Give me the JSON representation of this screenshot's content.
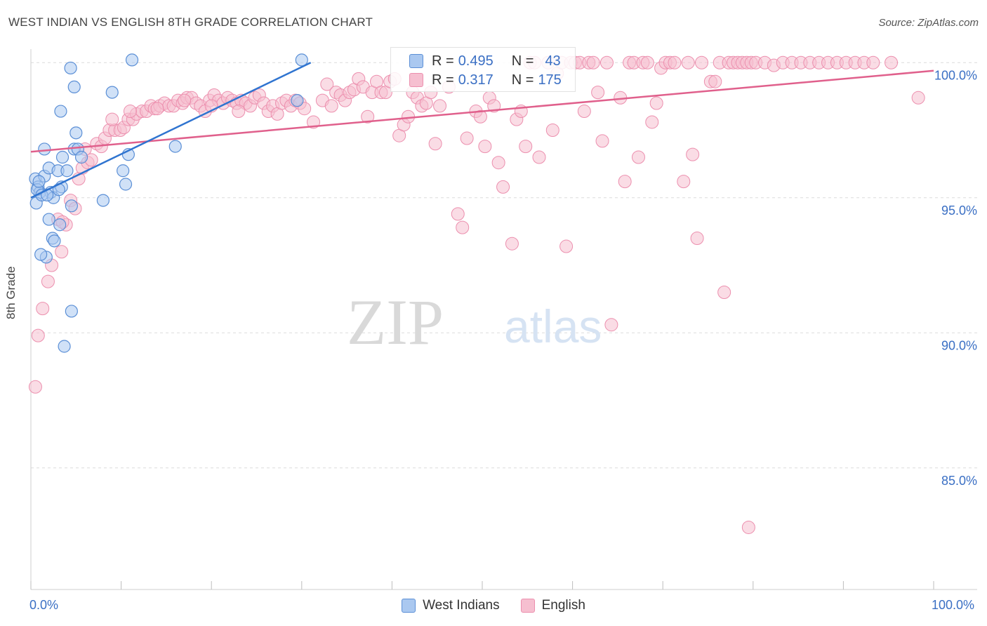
{
  "title": "WEST INDIAN VS ENGLISH 8TH GRADE CORRELATION CHART",
  "source": "Source: ZipAtlas.com",
  "watermark": {
    "zip": "ZIP",
    "atlas": "atlas"
  },
  "legend": {
    "rows": [
      {
        "r_key": "R =",
        "r_val": "0.495",
        "n_key": "N =",
        "n_val": "43"
      },
      {
        "r_key": "R =",
        "r_val": "0.317",
        "n_key": "N =",
        "n_val": "175"
      }
    ]
  },
  "colors": {
    "blue_fill": "#aac8f0",
    "blue_stroke": "#5b8fd6",
    "blue_line": "#2f74d0",
    "pink_fill": "#f6bfd0",
    "pink_stroke": "#ec8fae",
    "pink_line": "#e0608c",
    "axis_label": "#3a6fc4",
    "grid": "#dcdcdc"
  },
  "chart_data": {
    "type": "scatter",
    "title": "WEST INDIAN VS ENGLISH 8TH GRADE CORRELATION CHART",
    "xlabel": "",
    "ylabel": "8th Grade",
    "xlim": [
      0,
      100
    ],
    "ylim": [
      80.5,
      100.5
    ],
    "x_tick_labels": [
      "0.0%",
      "100.0%"
    ],
    "y_ticks": [
      85,
      90,
      95,
      100
    ],
    "y_tick_labels": [
      "85.0%",
      "90.0%",
      "95.0%",
      "100.0%"
    ],
    "grid": true,
    "legend_position": "bottom-center",
    "series": [
      {
        "name": "West Indians",
        "R": 0.495,
        "N": 43,
        "trend": [
          [
            0,
            95.0
          ],
          [
            31,
            100.0
          ]
        ],
        "points": [
          [
            0.5,
            95.7
          ],
          [
            0.8,
            95.4
          ],
          [
            1.0,
            95.2
          ],
          [
            0.6,
            94.8
          ],
          [
            1.5,
            95.8
          ],
          [
            2.0,
            96.1
          ],
          [
            2.2,
            95.2
          ],
          [
            2.5,
            95.0
          ],
          [
            3.0,
            96.0
          ],
          [
            3.4,
            95.4
          ],
          [
            3.5,
            96.5
          ],
          [
            4.0,
            96.0
          ],
          [
            1.5,
            96.8
          ],
          [
            2.0,
            94.2
          ],
          [
            2.4,
            93.5
          ],
          [
            1.7,
            92.8
          ],
          [
            2.6,
            93.4
          ],
          [
            3.2,
            94.0
          ],
          [
            1.1,
            92.9
          ],
          [
            4.5,
            94.7
          ],
          [
            4.8,
            96.8
          ],
          [
            5.2,
            96.8
          ],
          [
            5.6,
            96.5
          ],
          [
            5.0,
            97.4
          ],
          [
            3.3,
            98.2
          ],
          [
            4.8,
            99.1
          ],
          [
            4.4,
            99.8
          ],
          [
            9.0,
            98.9
          ],
          [
            10.2,
            96.0
          ],
          [
            10.5,
            95.5
          ],
          [
            10.8,
            96.6
          ],
          [
            11.2,
            100.1
          ],
          [
            8.0,
            94.9
          ],
          [
            4.5,
            90.8
          ],
          [
            3.7,
            89.5
          ],
          [
            16.0,
            96.9
          ],
          [
            30.0,
            100.1
          ],
          [
            29.5,
            98.6
          ],
          [
            0.7,
            95.3
          ],
          [
            1.2,
            95.1
          ],
          [
            1.8,
            95.1
          ],
          [
            0.9,
            95.6
          ],
          [
            3.1,
            95.3
          ]
        ]
      },
      {
        "name": "English",
        "R": 0.317,
        "N": 175,
        "trend": [
          [
            0,
            96.7
          ],
          [
            100,
            99.7
          ]
        ],
        "points": [
          [
            0.5,
            88.0
          ],
          [
            0.8,
            89.9
          ],
          [
            1.3,
            90.9
          ],
          [
            1.9,
            91.9
          ],
          [
            2.3,
            92.5
          ],
          [
            3.4,
            93.0
          ],
          [
            3.9,
            94.0
          ],
          [
            3.0,
            94.2
          ],
          [
            4.4,
            94.9
          ],
          [
            4.9,
            94.6
          ],
          [
            5.3,
            95.7
          ],
          [
            5.7,
            96.1
          ],
          [
            6.3,
            96.3
          ],
          [
            6.7,
            96.4
          ],
          [
            7.3,
            97.0
          ],
          [
            7.8,
            96.9
          ],
          [
            8.2,
            97.2
          ],
          [
            8.7,
            97.5
          ],
          [
            9.3,
            97.5
          ],
          [
            9.9,
            97.5
          ],
          [
            10.3,
            97.6
          ],
          [
            10.8,
            97.9
          ],
          [
            11.3,
            97.9
          ],
          [
            11.7,
            98.1
          ],
          [
            12.3,
            98.2
          ],
          [
            12.8,
            98.2
          ],
          [
            13.3,
            98.4
          ],
          [
            13.7,
            98.3
          ],
          [
            14.3,
            98.4
          ],
          [
            14.8,
            98.5
          ],
          [
            15.3,
            98.4
          ],
          [
            15.8,
            98.4
          ],
          [
            16.3,
            98.6
          ],
          [
            16.8,
            98.5
          ],
          [
            17.3,
            98.7
          ],
          [
            17.8,
            98.7
          ],
          [
            18.3,
            98.5
          ],
          [
            18.8,
            98.4
          ],
          [
            19.3,
            98.2
          ],
          [
            19.8,
            98.6
          ],
          [
            20.3,
            98.8
          ],
          [
            20.8,
            98.6
          ],
          [
            21.3,
            98.5
          ],
          [
            21.8,
            98.7
          ],
          [
            22.3,
            98.6
          ],
          [
            22.8,
            98.5
          ],
          [
            23.3,
            98.6
          ],
          [
            23.8,
            98.5
          ],
          [
            24.3,
            98.4
          ],
          [
            24.8,
            98.7
          ],
          [
            25.3,
            98.8
          ],
          [
            25.8,
            98.5
          ],
          [
            26.3,
            98.2
          ],
          [
            26.8,
            98.4
          ],
          [
            27.3,
            98.1
          ],
          [
            27.8,
            98.5
          ],
          [
            28.3,
            98.6
          ],
          [
            28.8,
            98.4
          ],
          [
            29.3,
            98.6
          ],
          [
            29.8,
            98.5
          ],
          [
            30.3,
            98.3
          ],
          [
            31.3,
            97.8
          ],
          [
            32.3,
            98.6
          ],
          [
            32.8,
            99.2
          ],
          [
            33.3,
            98.4
          ],
          [
            33.8,
            98.9
          ],
          [
            34.3,
            98.8
          ],
          [
            34.8,
            98.6
          ],
          [
            35.3,
            98.9
          ],
          [
            35.8,
            99.0
          ],
          [
            36.3,
            99.4
          ],
          [
            36.8,
            99.1
          ],
          [
            37.3,
            98.0
          ],
          [
            37.8,
            98.9
          ],
          [
            38.3,
            99.3
          ],
          [
            38.8,
            98.9
          ],
          [
            39.3,
            98.9
          ],
          [
            39.8,
            99.3
          ],
          [
            40.3,
            99.4
          ],
          [
            40.8,
            97.3
          ],
          [
            41.3,
            97.7
          ],
          [
            41.8,
            98.0
          ],
          [
            42.3,
            98.9
          ],
          [
            42.8,
            98.7
          ],
          [
            43.3,
            98.4
          ],
          [
            43.8,
            98.5
          ],
          [
            44.3,
            98.9
          ],
          [
            44.8,
            97.0
          ],
          [
            45.3,
            98.4
          ],
          [
            46.3,
            99.1
          ],
          [
            47.3,
            94.4
          ],
          [
            47.8,
            93.9
          ],
          [
            48.3,
            97.2
          ],
          [
            49.3,
            98.2
          ],
          [
            49.8,
            98.0
          ],
          [
            50.3,
            96.9
          ],
          [
            50.8,
            98.7
          ],
          [
            51.3,
            98.4
          ],
          [
            51.8,
            96.3
          ],
          [
            52.3,
            95.4
          ],
          [
            53.3,
            93.3
          ],
          [
            53.8,
            97.9
          ],
          [
            54.3,
            98.2
          ],
          [
            54.8,
            96.9
          ],
          [
            55.3,
            100.0
          ],
          [
            55.8,
            100.0
          ],
          [
            56.3,
            96.5
          ],
          [
            57.3,
            100.0
          ],
          [
            57.8,
            97.5
          ],
          [
            58.3,
            99.6
          ],
          [
            58.8,
            100.0
          ],
          [
            59.3,
            93.2
          ],
          [
            59.8,
            100.0
          ],
          [
            60.3,
            100.0
          ],
          [
            60.8,
            100.0
          ],
          [
            61.3,
            98.2
          ],
          [
            61.8,
            100.0
          ],
          [
            62.3,
            100.0
          ],
          [
            62.8,
            98.9
          ],
          [
            63.3,
            97.1
          ],
          [
            63.8,
            100.0
          ],
          [
            64.3,
            90.3
          ],
          [
            65.3,
            98.7
          ],
          [
            65.8,
            95.6
          ],
          [
            66.3,
            100.0
          ],
          [
            66.8,
            100.0
          ],
          [
            67.3,
            96.5
          ],
          [
            67.8,
            100.0
          ],
          [
            68.3,
            100.0
          ],
          [
            68.8,
            97.8
          ],
          [
            69.3,
            98.5
          ],
          [
            69.8,
            99.8
          ],
          [
            70.3,
            100.0
          ],
          [
            70.8,
            100.0
          ],
          [
            71.3,
            100.0
          ],
          [
            72.3,
            95.6
          ],
          [
            72.8,
            100.0
          ],
          [
            73.3,
            96.6
          ],
          [
            73.8,
            93.5
          ],
          [
            74.3,
            100.0
          ],
          [
            75.3,
            99.3
          ],
          [
            75.8,
            99.3
          ],
          [
            76.3,
            100.0
          ],
          [
            76.8,
            91.5
          ],
          [
            77.3,
            100.0
          ],
          [
            77.8,
            100.0
          ],
          [
            78.3,
            100.0
          ],
          [
            78.8,
            100.0
          ],
          [
            79.3,
            100.0
          ],
          [
            79.8,
            100.0
          ],
          [
            80.3,
            100.0
          ],
          [
            81.3,
            100.0
          ],
          [
            82.3,
            99.9
          ],
          [
            83.3,
            100.0
          ],
          [
            84.3,
            100.0
          ],
          [
            85.3,
            100.0
          ],
          [
            86.3,
            100.0
          ],
          [
            87.3,
            100.0
          ],
          [
            88.3,
            100.0
          ],
          [
            89.3,
            100.0
          ],
          [
            90.3,
            100.0
          ],
          [
            91.3,
            100.0
          ],
          [
            92.3,
            100.0
          ],
          [
            93.3,
            100.0
          ],
          [
            95.3,
            100.0
          ],
          [
            98.3,
            98.7
          ],
          [
            79.5,
            82.8
          ],
          [
            3.5,
            94.1
          ],
          [
            6.0,
            96.8
          ],
          [
            9.0,
            97.9
          ],
          [
            11.0,
            98.2
          ],
          [
            14.0,
            98.3
          ],
          [
            17.0,
            98.6
          ],
          [
            20.0,
            98.4
          ],
          [
            23.0,
            98.2
          ]
        ]
      }
    ]
  },
  "bottom_legend": [
    "West Indians",
    "English"
  ]
}
